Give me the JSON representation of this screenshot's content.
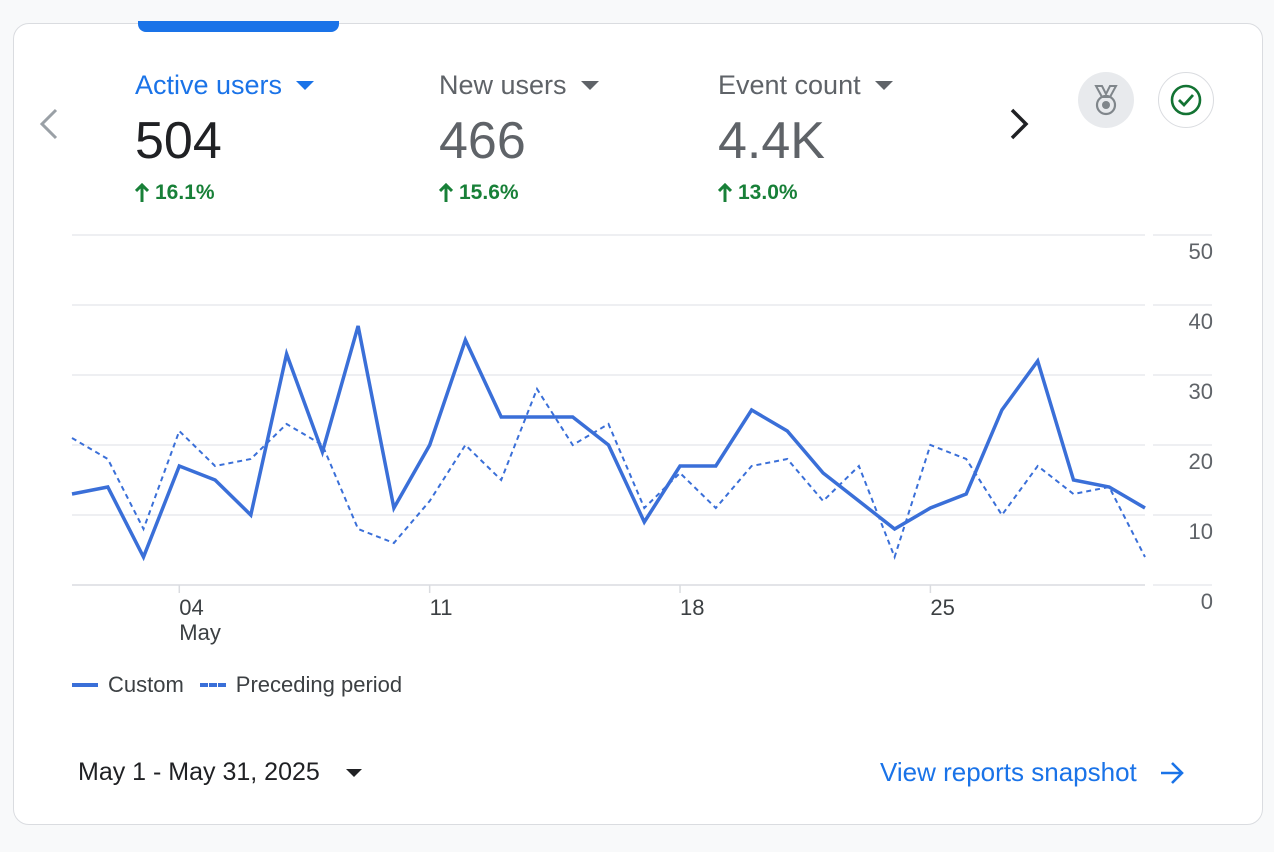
{
  "metrics": [
    {
      "label": "Active users",
      "value": "504",
      "change": "16.1%"
    },
    {
      "label": "New users",
      "value": "466",
      "change": "15.6%"
    },
    {
      "label": "Event count",
      "value": "4.4K",
      "change": "13.0%"
    }
  ],
  "chart_data": {
    "type": "line",
    "x": [
      "May 1",
      "May 2",
      "May 3",
      "May 4",
      "May 5",
      "May 6",
      "May 7",
      "May 8",
      "May 9",
      "May 10",
      "May 11",
      "May 12",
      "May 13",
      "May 14",
      "May 15",
      "May 16",
      "May 17",
      "May 18",
      "May 19",
      "May 20",
      "May 21",
      "May 22",
      "May 23",
      "May 24",
      "May 25",
      "May 26",
      "May 27",
      "May 28",
      "May 29",
      "May 30",
      "May 31"
    ],
    "series": [
      {
        "name": "Custom",
        "style": "solid",
        "values": [
          13,
          14,
          4,
          17,
          15,
          10,
          33,
          19,
          37,
          11,
          20,
          35,
          24,
          24,
          24,
          20,
          9,
          17,
          17,
          25,
          22,
          16,
          12,
          8,
          11,
          13,
          25,
          32,
          15,
          14,
          11
        ]
      },
      {
        "name": "Preceding period",
        "style": "dashed",
        "values": [
          21,
          18,
          8,
          22,
          17,
          18,
          23,
          20,
          8,
          6,
          12,
          20,
          15,
          28,
          20,
          23,
          11,
          16,
          11,
          17,
          18,
          12,
          17,
          4,
          20,
          18,
          10,
          17,
          13,
          14,
          4
        ]
      }
    ],
    "ylim": [
      0,
      50
    ],
    "yticks": [
      "0",
      "10",
      "20",
      "30",
      "40",
      "50"
    ],
    "xticks": [
      {
        "label": "04",
        "sublabel": "May",
        "index": 3
      },
      {
        "label": "11",
        "index": 10
      },
      {
        "label": "18",
        "index": 17
      },
      {
        "label": "25",
        "index": 24
      }
    ],
    "grid": true,
    "color": "#3a6fd8"
  },
  "legend": {
    "custom": "Custom",
    "preceding": "Preceding period"
  },
  "footer": {
    "date_range": "May 1 - May 31, 2025",
    "link": "View reports snapshot"
  }
}
